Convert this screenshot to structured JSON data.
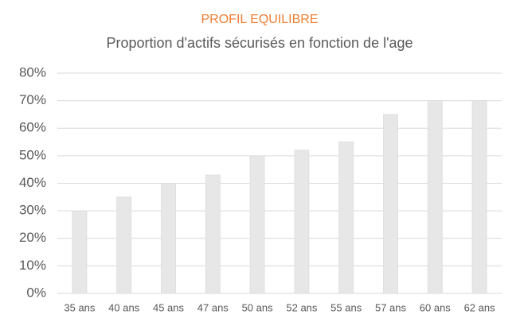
{
  "chart_data": {
    "type": "bar",
    "title": "PROFIL EQUILIBRE",
    "subtitle": "Proportion d'actifs sécurisés en fonction de l'age",
    "categories": [
      "35 ans",
      "40 ans",
      "45 ans",
      "47 ans",
      "50 ans",
      "52 ans",
      "55 ans",
      "57 ans",
      "60 ans",
      "62 ans"
    ],
    "values": [
      30,
      35,
      40,
      43,
      50,
      52,
      55,
      65,
      70,
      70
    ],
    "color": "#e7e7e7",
    "title_color": "#ed7d31",
    "ylim": [
      0,
      80
    ],
    "yticks": [
      {
        "value": 0,
        "label": "0%"
      },
      {
        "value": 10,
        "label": "10%"
      },
      {
        "value": 20,
        "label": "20%"
      },
      {
        "value": 30,
        "label": "30%"
      },
      {
        "value": 40,
        "label": "40%"
      },
      {
        "value": 50,
        "label": "50%"
      },
      {
        "value": 60,
        "label": "60%"
      },
      {
        "value": 70,
        "label": "70%"
      },
      {
        "value": 80,
        "label": "80%"
      }
    ],
    "grid": true
  }
}
